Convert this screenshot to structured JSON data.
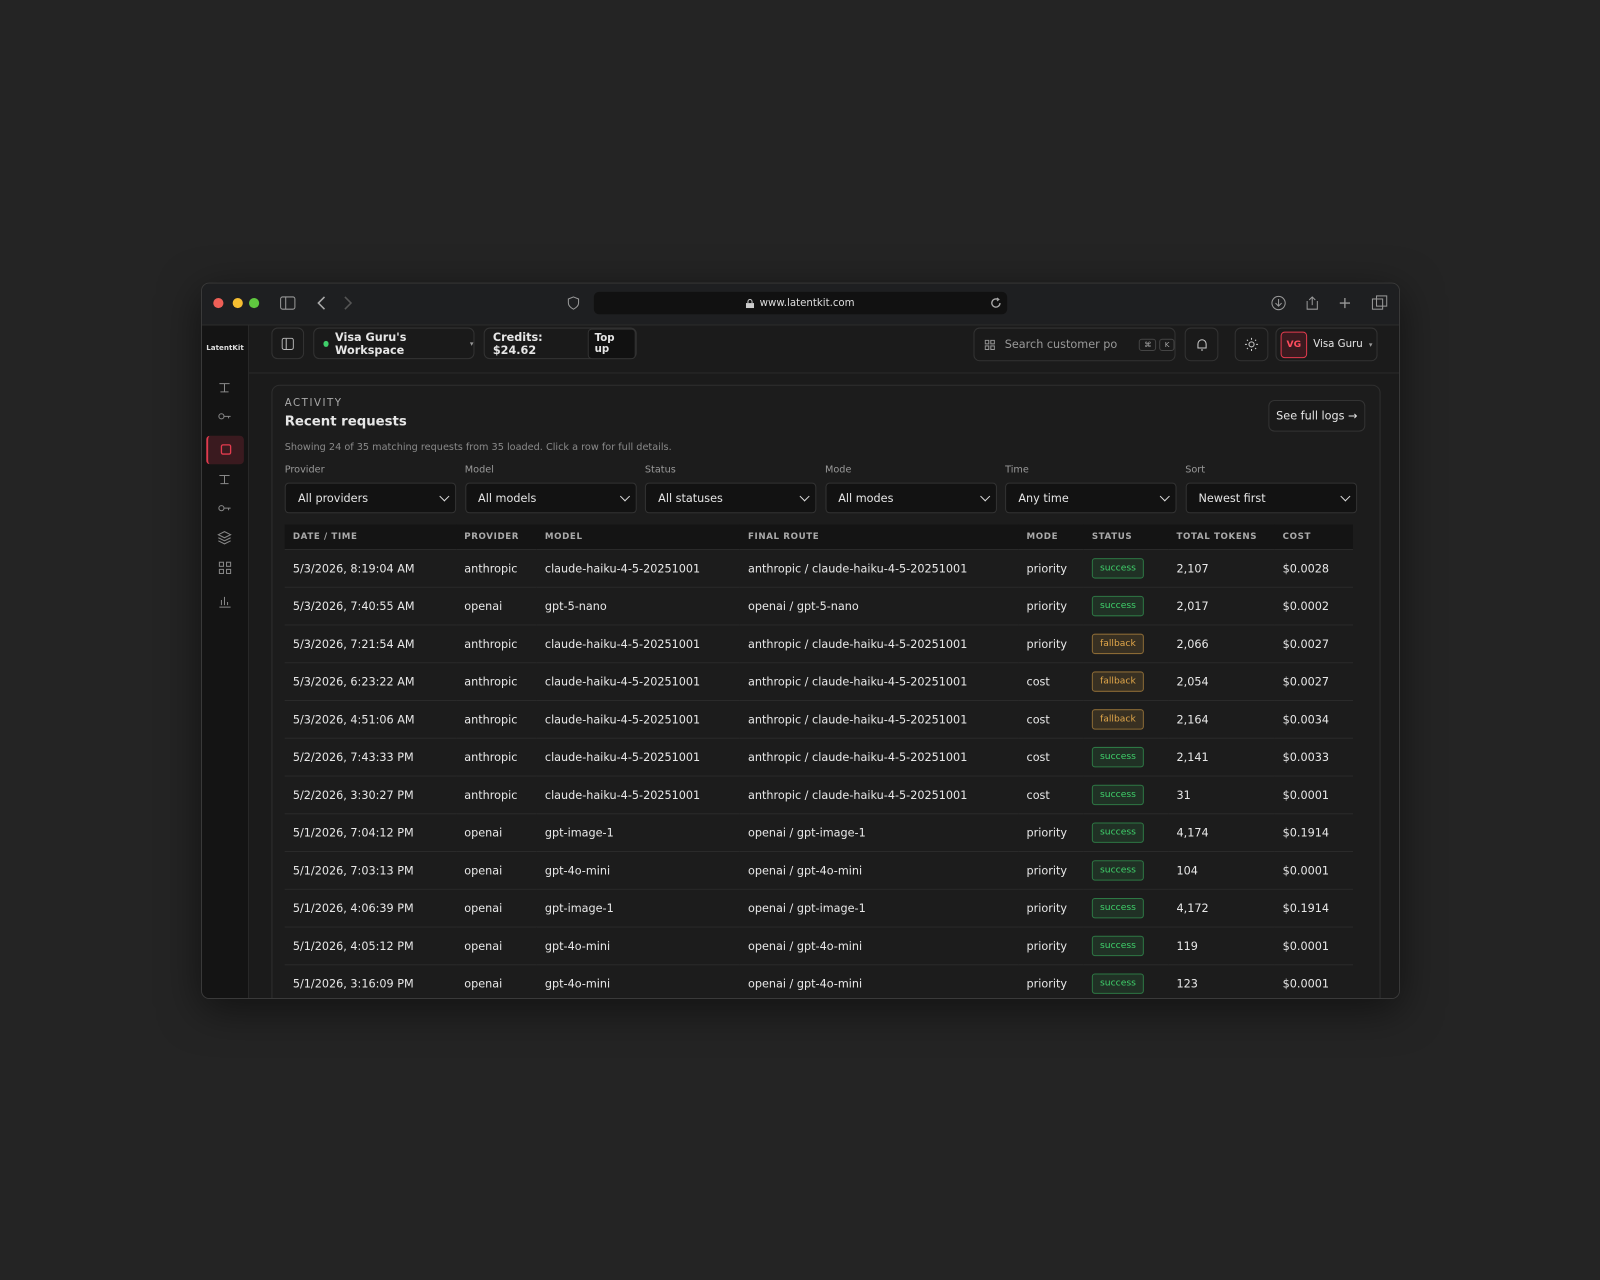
{
  "browser": {
    "url": "www.latentkit.com"
  },
  "sidebar": {
    "brand": "LatentKit"
  },
  "topbar": {
    "workspace": "Visa Guru's Workspace",
    "credits": "Credits: $24.62",
    "top_up": "Top up",
    "search_placeholder": "Search customer po",
    "shortcut": [
      "⌘",
      "K"
    ],
    "user_initials": "VG",
    "user_name": "Visa Guru"
  },
  "activity": {
    "eyebrow": "ACTIVITY",
    "title": "Recent requests",
    "summary": "Showing 24 of 35 matching requests from 35 loaded. Click a row for full details.",
    "see_logs": "See full logs →"
  },
  "filters": [
    {
      "label": "Provider",
      "value": "All providers"
    },
    {
      "label": "Model",
      "value": "All models"
    },
    {
      "label": "Status",
      "value": "All statuses"
    },
    {
      "label": "Mode",
      "value": "All modes"
    },
    {
      "label": "Time",
      "value": "Any time"
    },
    {
      "label": "Sort",
      "value": "Newest first"
    }
  ],
  "table": {
    "columns": [
      "DATE / TIME",
      "PROVIDER",
      "MODEL",
      "FINAL ROUTE",
      "MODE",
      "STATUS",
      "TOTAL TOKENS",
      "COST"
    ],
    "rows": [
      [
        "5/3/2026, 8:19:04 AM",
        "anthropic",
        "claude-haiku-4-5-20251001",
        "anthropic / claude-haiku-4-5-20251001",
        "priority",
        "success",
        "2,107",
        "$0.0028"
      ],
      [
        "5/3/2026, 7:40:55 AM",
        "openai",
        "gpt-5-nano",
        "openai / gpt-5-nano",
        "priority",
        "success",
        "2,017",
        "$0.0002"
      ],
      [
        "5/3/2026, 7:21:54 AM",
        "anthropic",
        "claude-haiku-4-5-20251001",
        "anthropic / claude-haiku-4-5-20251001",
        "priority",
        "fallback",
        "2,066",
        "$0.0027"
      ],
      [
        "5/3/2026, 6:23:22 AM",
        "anthropic",
        "claude-haiku-4-5-20251001",
        "anthropic / claude-haiku-4-5-20251001",
        "cost",
        "fallback",
        "2,054",
        "$0.0027"
      ],
      [
        "5/3/2026, 4:51:06 AM",
        "anthropic",
        "claude-haiku-4-5-20251001",
        "anthropic / claude-haiku-4-5-20251001",
        "cost",
        "fallback",
        "2,164",
        "$0.0034"
      ],
      [
        "5/2/2026, 7:43:33 PM",
        "anthropic",
        "claude-haiku-4-5-20251001",
        "anthropic / claude-haiku-4-5-20251001",
        "cost",
        "success",
        "2,141",
        "$0.0033"
      ],
      [
        "5/2/2026, 3:30:27 PM",
        "anthropic",
        "claude-haiku-4-5-20251001",
        "anthropic / claude-haiku-4-5-20251001",
        "cost",
        "success",
        "31",
        "$0.0001"
      ],
      [
        "5/1/2026, 7:04:12 PM",
        "openai",
        "gpt-image-1",
        "openai / gpt-image-1",
        "priority",
        "success",
        "4,174",
        "$0.1914"
      ],
      [
        "5/1/2026, 7:03:13 PM",
        "openai",
        "gpt-4o-mini",
        "openai / gpt-4o-mini",
        "priority",
        "success",
        "104",
        "$0.0001"
      ],
      [
        "5/1/2026, 4:06:39 PM",
        "openai",
        "gpt-image-1",
        "openai / gpt-image-1",
        "priority",
        "success",
        "4,172",
        "$0.1914"
      ],
      [
        "5/1/2026, 4:05:12 PM",
        "openai",
        "gpt-4o-mini",
        "openai / gpt-4o-mini",
        "priority",
        "success",
        "119",
        "$0.0001"
      ],
      [
        "5/1/2026, 3:16:09 PM",
        "openai",
        "gpt-4o-mini",
        "openai / gpt-4o-mini",
        "priority",
        "success",
        "123",
        "$0.0001"
      ]
    ]
  }
}
